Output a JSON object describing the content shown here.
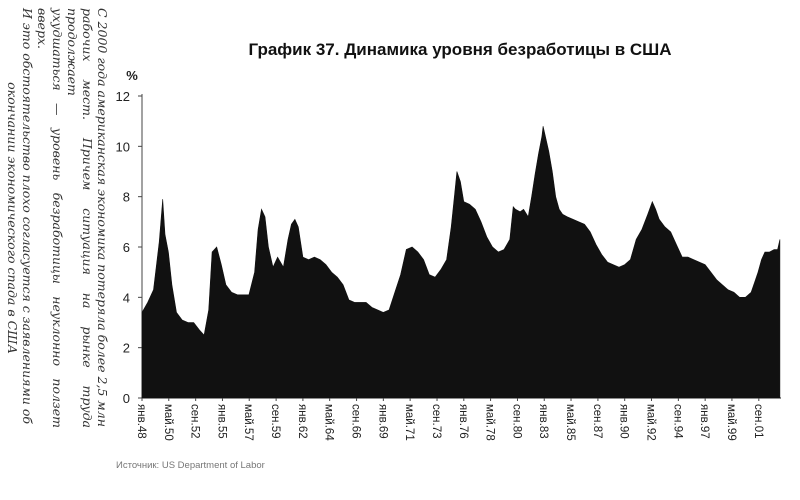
{
  "side_text": {
    "lines": [
      "С 2000 года американская экономика потеряла более 2,5 млн",
      "рабочих мест. Причем ситуация на рынке труда продолжает",
      "ухудшаться — уровень безработицы неуклонно ползет вверх.",
      "И это обстоятельство плохо согласуется с заявлениями об",
      "окончании экономического спада в США"
    ]
  },
  "source": "Источник: US Department of Labor",
  "chart_data": {
    "type": "area",
    "title": "График 37. Динамика уровня безработицы в США",
    "ylabel": "%",
    "ylim": [
      0,
      12
    ],
    "yticks": [
      0,
      2,
      4,
      6,
      8,
      10,
      12
    ],
    "xlim": [
      1948.0,
      2003.6
    ],
    "tick_labels": [
      {
        "label": "янв.48",
        "x": 1948.0
      },
      {
        "label": "май.50",
        "x": 1950.33
      },
      {
        "label": "сен.52",
        "x": 1952.67
      },
      {
        "label": "янв.55",
        "x": 1955.0
      },
      {
        "label": "май.57",
        "x": 1957.33
      },
      {
        "label": "сен.59",
        "x": 1959.67
      },
      {
        "label": "янв.62",
        "x": 1962.0
      },
      {
        "label": "май.64",
        "x": 1964.33
      },
      {
        "label": "сен.66",
        "x": 1966.67
      },
      {
        "label": "янв.69",
        "x": 1969.0
      },
      {
        "label": "май.71",
        "x": 1971.33
      },
      {
        "label": "сен.73",
        "x": 1973.67
      },
      {
        "label": "янв.76",
        "x": 1976.0
      },
      {
        "label": "май.78",
        "x": 1978.33
      },
      {
        "label": "сен.80",
        "x": 1980.67
      },
      {
        "label": "янв.83",
        "x": 1983.0
      },
      {
        "label": "май.85",
        "x": 1985.33
      },
      {
        "label": "сен.87",
        "x": 1987.67
      },
      {
        "label": "янв.90",
        "x": 1990.0
      },
      {
        "label": "май.92",
        "x": 1992.33
      },
      {
        "label": "сен.94",
        "x": 1994.67
      },
      {
        "label": "янв.97",
        "x": 1997.0
      },
      {
        "label": "май.99",
        "x": 1999.33
      },
      {
        "label": "сен.01",
        "x": 2001.67
      }
    ],
    "series": [
      {
        "x": [
          1948.0,
          1948.5,
          1949.0,
          1949.5,
          1949.8,
          1950.0,
          1950.3,
          1950.6,
          1951.0,
          1951.5,
          1952.0,
          1952.5,
          1953.0,
          1953.4,
          1953.8,
          1954.1,
          1954.5,
          1954.9,
          1955.3,
          1955.8,
          1956.3,
          1956.8,
          1957.3,
          1957.8,
          1958.1,
          1958.4,
          1958.7,
          1959.0,
          1959.4,
          1959.8,
          1960.3,
          1960.7,
          1961.0,
          1961.3,
          1961.6,
          1962.0,
          1962.5,
          1963.0,
          1963.5,
          1964.0,
          1964.5,
          1965.0,
          1965.5,
          1966.0,
          1966.5,
          1967.0,
          1967.5,
          1968.0,
          1968.5,
          1969.0,
          1969.5,
          1970.0,
          1970.5,
          1971.0,
          1971.5,
          1972.0,
          1972.5,
          1973.0,
          1973.5,
          1974.0,
          1974.5,
          1974.9,
          1975.2,
          1975.4,
          1975.7,
          1976.0,
          1976.5,
          1977.0,
          1977.5,
          1978.0,
          1978.5,
          1979.0,
          1979.5,
          1980.0,
          1980.3,
          1980.5,
          1980.9,
          1981.2,
          1981.6,
          1981.9,
          1982.2,
          1982.5,
          1982.8,
          1982.9,
          1983.1,
          1983.4,
          1983.7,
          1984.0,
          1984.3,
          1984.6,
          1985.0,
          1985.5,
          1986.0,
          1986.5,
          1987.0,
          1987.5,
          1988.0,
          1988.5,
          1989.0,
          1989.5,
          1990.0,
          1990.5,
          1991.0,
          1991.5,
          1992.0,
          1992.4,
          1992.7,
          1993.0,
          1993.5,
          1994.0,
          1994.5,
          1995.0,
          1995.5,
          1996.0,
          1996.5,
          1997.0,
          1997.5,
          1998.0,
          1998.5,
          1999.0,
          1999.5,
          2000.0,
          2000.5,
          2001.0,
          2001.3,
          2001.6,
          2001.9,
          2002.2,
          2002.6,
          2003.0,
          2003.3,
          2003.5
        ],
        "y": [
          3.4,
          3.8,
          4.3,
          6.2,
          7.9,
          6.5,
          5.8,
          4.5,
          3.4,
          3.1,
          3.0,
          3.0,
          2.7,
          2.5,
          3.5,
          5.8,
          6.0,
          5.3,
          4.5,
          4.2,
          4.1,
          4.1,
          4.1,
          5.0,
          6.7,
          7.5,
          7.2,
          6.0,
          5.2,
          5.6,
          5.2,
          6.3,
          6.9,
          7.1,
          6.8,
          5.6,
          5.5,
          5.6,
          5.5,
          5.3,
          5.0,
          4.8,
          4.5,
          3.9,
          3.8,
          3.8,
          3.8,
          3.6,
          3.5,
          3.4,
          3.5,
          4.2,
          4.9,
          5.9,
          6.0,
          5.8,
          5.5,
          4.9,
          4.8,
          5.1,
          5.5,
          6.8,
          8.1,
          9.0,
          8.6,
          7.8,
          7.7,
          7.5,
          7.0,
          6.4,
          6.0,
          5.8,
          5.9,
          6.3,
          7.6,
          7.5,
          7.4,
          7.5,
          7.2,
          8.0,
          8.9,
          9.7,
          10.4,
          10.8,
          10.4,
          9.8,
          9.0,
          8.0,
          7.5,
          7.3,
          7.2,
          7.1,
          7.0,
          6.9,
          6.6,
          6.1,
          5.7,
          5.4,
          5.3,
          5.2,
          5.3,
          5.5,
          6.3,
          6.7,
          7.3,
          7.8,
          7.5,
          7.1,
          6.8,
          6.6,
          6.1,
          5.6,
          5.6,
          5.5,
          5.4,
          5.3,
          5.0,
          4.7,
          4.5,
          4.3,
          4.2,
          4.0,
          4.0,
          4.2,
          4.6,
          5.0,
          5.5,
          5.8,
          5.8,
          5.9,
          5.9,
          6.3
        ]
      }
    ],
    "grid": false,
    "legend": "none",
    "fill_color": "#111111",
    "text_color": "#222222"
  }
}
